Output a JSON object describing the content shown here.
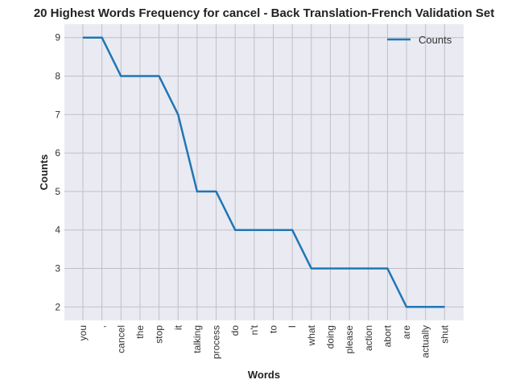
{
  "chart_data": {
    "type": "line",
    "title": "20 Highest Words Frequency for cancel - Back Translation-French Validation Set",
    "xlabel": "Words",
    "ylabel": "Counts",
    "categories": [
      "you",
      ",",
      "cancel",
      "the",
      "stop",
      "it",
      "talking",
      "process",
      "do",
      "n't",
      "to",
      "I",
      "what",
      "doing",
      "please",
      "action",
      "abort",
      "are",
      "actually",
      "shut"
    ],
    "series": [
      {
        "name": "Counts",
        "values": [
          9,
          9,
          8,
          8,
          8,
          7,
          5,
          5,
          4,
          4,
          4,
          4,
          3,
          3,
          3,
          3,
          3,
          2,
          2,
          2
        ],
        "color": "#1f77b4"
      }
    ],
    "y_ticks": [
      2,
      3,
      4,
      5,
      6,
      7,
      8,
      9
    ],
    "ylim": [
      1.65,
      9.35
    ],
    "grid": true,
    "legend_position": "top-right",
    "background_color": "#eaeaf2",
    "grid_color": "#c0c0c8"
  }
}
